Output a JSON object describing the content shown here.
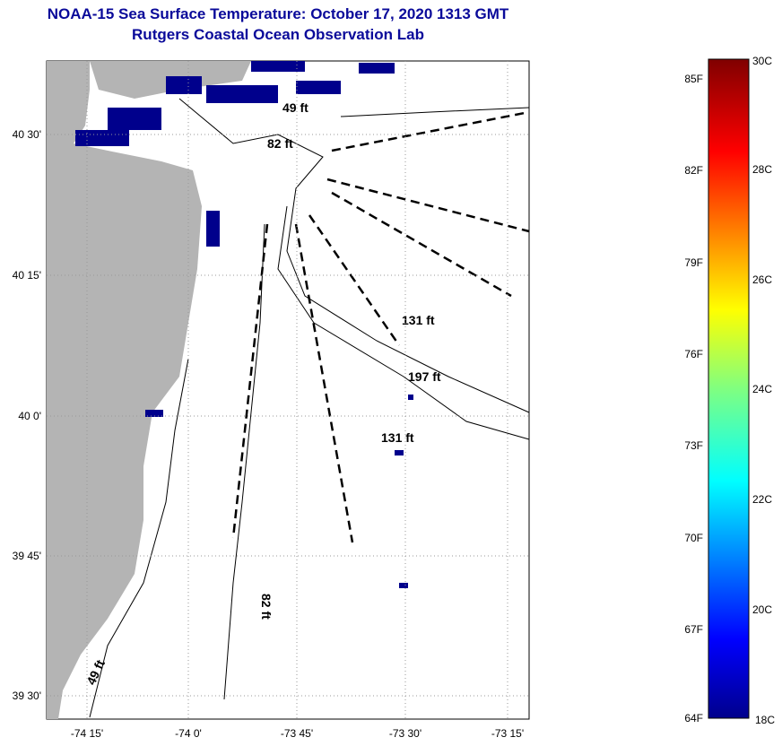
{
  "title": "NOAA-15 Sea Surface Temperature:  October 17, 2020 1313 GMT",
  "subtitle": "Rutgers Coastal Ocean Observation Lab",
  "map": {
    "lon_labels": [
      "-74 15'",
      "-74 0'",
      "-73 45'",
      "-73 30'",
      "-73 15'"
    ],
    "lat_labels": [
      "40 30'",
      "40 15'",
      "40 0'",
      "39 45'",
      "39 30'"
    ],
    "depth_labels": [
      "49 ft",
      "82 ft",
      "131 ft",
      "197 ft",
      "131 ft",
      "82 ft",
      "49 ft"
    ],
    "colors": {
      "land": "#b4b4b4",
      "cold_pixels": "#00008c",
      "contour": "#000000"
    }
  },
  "colorbar": {
    "f_labels": [
      "85F",
      "82F",
      "79F",
      "76F",
      "73F",
      "70F",
      "67F",
      "64F"
    ],
    "c_labels": [
      "30C",
      "28C",
      "26C",
      "24C",
      "22C",
      "20C",
      "18C"
    ],
    "range_c": [
      18,
      30
    ]
  }
}
